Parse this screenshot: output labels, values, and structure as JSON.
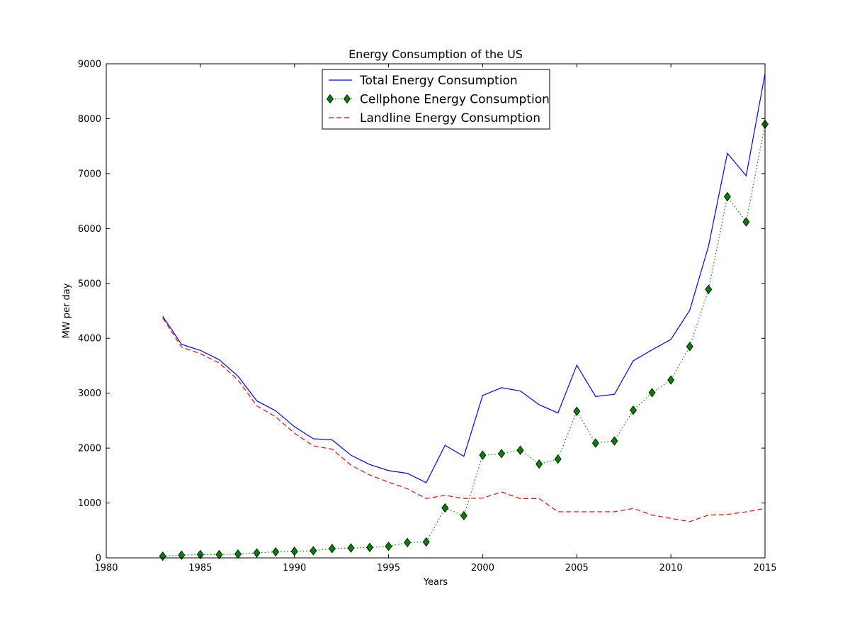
{
  "chart_data": {
    "type": "line",
    "title": "Energy Consumption of the US",
    "xlabel": "Years",
    "ylabel": "MW per day",
    "xlim": [
      1980,
      2015
    ],
    "ylim": [
      0,
      9000
    ],
    "xticks": [
      1980,
      1985,
      1990,
      1995,
      2000,
      2005,
      2010,
      2015
    ],
    "yticks": [
      0,
      1000,
      2000,
      3000,
      4000,
      5000,
      6000,
      7000,
      8000,
      9000
    ],
    "grid": false,
    "legend_position": "upper center",
    "x": [
      1983,
      1984,
      1985,
      1986,
      1987,
      1988,
      1989,
      1990,
      1991,
      1992,
      1993,
      1994,
      1995,
      1996,
      1997,
      1998,
      1999,
      2000,
      2001,
      2002,
      2003,
      2004,
      2005,
      2006,
      2007,
      2008,
      2009,
      2010,
      2011,
      2012,
      2013,
      2014,
      2015
    ],
    "series": [
      {
        "name": "Total Energy Consumption",
        "color": "#0000ff",
        "line_style": "solid",
        "marker": "none",
        "values": [
          4400,
          3890,
          3780,
          3610,
          3310,
          2860,
          2680,
          2390,
          2170,
          2150,
          1870,
          1700,
          1590,
          1540,
          1370,
          2050,
          1850,
          2960,
          3100,
          3040,
          2790,
          2640,
          3510,
          2940,
          2980,
          3590,
          3790,
          3980,
          4510,
          5680,
          7370,
          6960,
          8820
        ]
      },
      {
        "name": "Cellphone Energy Consumption",
        "color": "#008000",
        "line_style": "dotted",
        "marker": "diamond",
        "values": [
          30,
          50,
          60,
          60,
          70,
          90,
          110,
          120,
          130,
          170,
          180,
          190,
          210,
          280,
          290,
          910,
          770,
          1870,
          1900,
          1960,
          1710,
          1800,
          2670,
          2090,
          2130,
          2690,
          3010,
          3240,
          3850,
          4890,
          6580,
          6120,
          7900
        ]
      },
      {
        "name": "Landline Energy Consumption",
        "color": "#ff0000",
        "line_style": "dashed",
        "marker": "none",
        "values": [
          4370,
          3840,
          3720,
          3550,
          3240,
          2770,
          2570,
          2270,
          2040,
          1980,
          1690,
          1510,
          1380,
          1260,
          1080,
          1140,
          1080,
          1090,
          1200,
          1080,
          1080,
          840,
          840,
          840,
          840,
          900,
          780,
          720,
          660,
          780,
          790,
          840,
          900
        ]
      }
    ]
  }
}
